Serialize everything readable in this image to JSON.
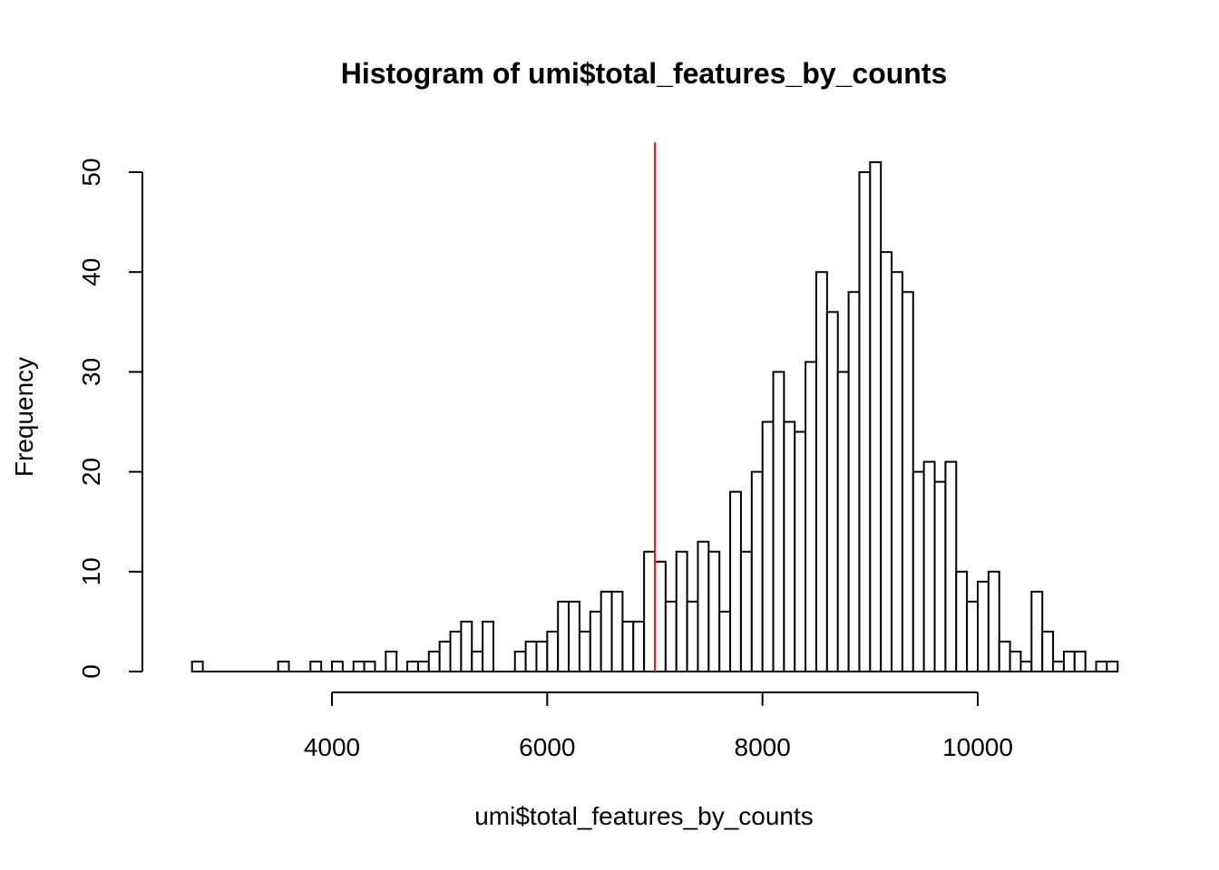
{
  "chart_data": {
    "type": "bar",
    "title": "Histogram of umi$total_features_by_counts",
    "xlabel": "umi$total_features_by_counts",
    "ylabel": "Frequency",
    "bin_width": 100,
    "x_start": 2700,
    "values": [
      1,
      0,
      0,
      0,
      0,
      0,
      0,
      0,
      1,
      0,
      0,
      1,
      0,
      1,
      0,
      1,
      1,
      0,
      2,
      0,
      1,
      1,
      2,
      3,
      4,
      5,
      2,
      5,
      0,
      0,
      2,
      3,
      3,
      4,
      7,
      7,
      4,
      6,
      8,
      8,
      5,
      5,
      12,
      11,
      7,
      12,
      7,
      13,
      12,
      6,
      18,
      12,
      20,
      25,
      30,
      25,
      24,
      31,
      40,
      36,
      30,
      38,
      50,
      51,
      42,
      40,
      38,
      20,
      21,
      19,
      21,
      10,
      7,
      9,
      10,
      3,
      2,
      1,
      8,
      4,
      1,
      2,
      2,
      0,
      1,
      1
    ],
    "xlim": [
      2700,
      11300
    ],
    "ylim": [
      0,
      53
    ],
    "x_ticks": [
      4000,
      6000,
      8000,
      10000
    ],
    "y_ticks": [
      0,
      10,
      20,
      30,
      40,
      50
    ],
    "x_tick_labels": [
      "4000",
      "6000",
      "8000",
      "10000"
    ],
    "y_tick_labels": [
      "0",
      "10",
      "20",
      "30",
      "40",
      "50"
    ],
    "vline": {
      "x": 7000,
      "color": "#e41a1c"
    },
    "grid": false,
    "bar_fill": "#ffffff",
    "bar_stroke": "#000000"
  }
}
